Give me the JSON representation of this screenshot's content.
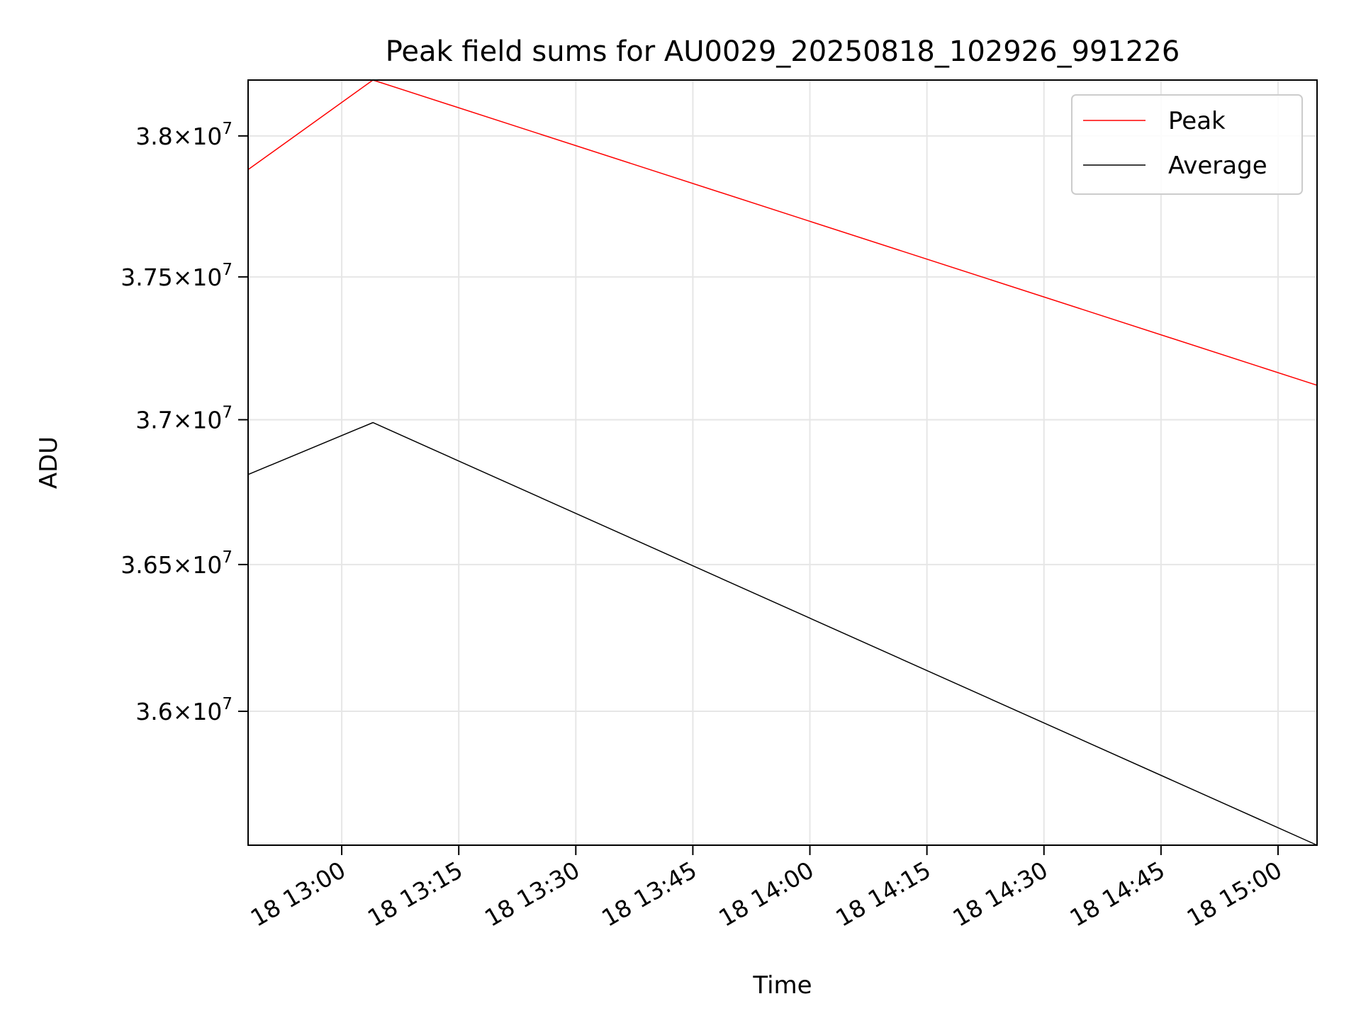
{
  "chart_data": {
    "type": "line",
    "title": "Peak field sums for AU0029_20250818_102926_991226",
    "xlabel": "Time",
    "ylabel": "ADU",
    "x_axis": {
      "kind": "time",
      "date": "2025-08-18",
      "range": [
        "12:48",
        "15:05"
      ],
      "ticks": [
        "12:48",
        "13:00",
        "13:15",
        "13:30",
        "13:45",
        "14:00",
        "14:15",
        "14:30",
        "14:45",
        "15:00"
      ],
      "tick_labels": [
        "",
        "18 13:00",
        "18 13:15",
        "18 13:30",
        "18 13:45",
        "18 14:00",
        "18 14:15",
        "18 14:30",
        "18 14:45",
        "18 15:00"
      ]
    },
    "y_axis": {
      "scale": "log",
      "range": [
        35550000,
        38200000
      ],
      "ticks": [
        36000000,
        36500000,
        37000000,
        37500000,
        38000000
      ],
      "tick_mantissas": [
        "3.6",
        "3.65",
        "3.7",
        "3.75",
        "3.8"
      ],
      "tick_base": "10",
      "tick_exponent": "7"
    },
    "grid": true,
    "legend_position": "top-right",
    "series": [
      {
        "name": "Peak",
        "color": "#ff0000",
        "points": [
          {
            "x": "12:48",
            "y": 37880000
          },
          {
            "x": "13:04",
            "y": 38200000
          },
          {
            "x": "15:05",
            "y": 37120000
          }
        ]
      },
      {
        "name": "Average",
        "color": "#000000",
        "points": [
          {
            "x": "12:48",
            "y": 36810000
          },
          {
            "x": "13:04",
            "y": 36990000
          },
          {
            "x": "15:05",
            "y": 35550000
          }
        ]
      }
    ]
  }
}
